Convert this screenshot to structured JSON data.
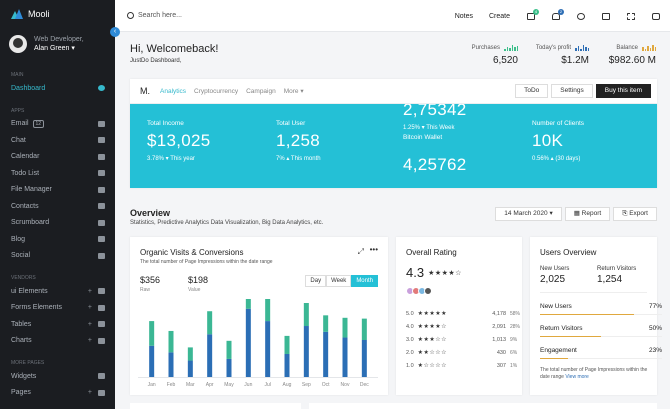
{
  "brand": {
    "name": "Mooli"
  },
  "profile": {
    "role": "Web Developer,",
    "name": "Alan Green ▾"
  },
  "sidebar": {
    "sections": [
      {
        "title": "MAIN",
        "items": [
          {
            "label": "Dashboard",
            "active": true
          }
        ]
      },
      {
        "title": "APPS",
        "items": [
          {
            "label": "Email",
            "badge": "12"
          },
          {
            "label": "Chat"
          },
          {
            "label": "Calendar"
          },
          {
            "label": "Todo List"
          },
          {
            "label": "File Manager"
          },
          {
            "label": "Contacts"
          },
          {
            "label": "Scrumboard"
          },
          {
            "label": "Blog"
          },
          {
            "label": "Social"
          }
        ]
      },
      {
        "title": "VENDORS",
        "items": [
          {
            "label": "ui Elements",
            "expandable": true
          },
          {
            "label": "Forms Elements",
            "expandable": true
          },
          {
            "label": "Tables",
            "expandable": true
          },
          {
            "label": "Charts",
            "expandable": true
          }
        ]
      },
      {
        "title": "MORE PAGES",
        "items": [
          {
            "label": "Widgets"
          },
          {
            "label": "Pages",
            "expandable": true
          }
        ]
      }
    ]
  },
  "topbar": {
    "search_placeholder": "Search here...",
    "links": [
      "Notes",
      "Create"
    ],
    "mail_badge": "4",
    "bell_badge": "2"
  },
  "header": {
    "title": "Hi, Welcomeback!",
    "subtitle": "JustDo Dashboard,",
    "stats": [
      {
        "label": "Purchases",
        "value": "6,520",
        "color": "#3bbf8a"
      },
      {
        "label": "Today's profit",
        "value": "$1.2M",
        "color": "#2f6fb5"
      },
      {
        "label": "Balance",
        "value": "$982.60 M",
        "color": "#e0a83e"
      }
    ]
  },
  "analytics": {
    "logo": "M.",
    "tabs": [
      "Analytics",
      "Cryptocurrency",
      "Campaign",
      "More ▾"
    ],
    "buttons": [
      "ToDo",
      "Settings",
      "Buy this item"
    ],
    "metrics": [
      {
        "label": "Total Income",
        "value": "$13,025",
        "sub": "3.78% ▾  This year"
      },
      {
        "label": "Total User",
        "value": "1,258",
        "sub": "7% ▴  This month"
      },
      {
        "label": "Bitcoin Wallet",
        "value_top": "2,75342",
        "sub_top": "1.25% ▾  This Week",
        "value_bottom": "4,25762"
      },
      {
        "label": "Number of Clients",
        "value": "10K",
        "sub": "0.56% ▴  (30 days)"
      }
    ]
  },
  "overview": {
    "title": "Overview",
    "subtitle": "Statistics, Predictive Analytics Data Visualization, Big Data Analytics, etc.",
    "date": "14 March 2020 ▾",
    "report": "Report",
    "export": "Export"
  },
  "visits": {
    "title": "Organic Visits & Conversions",
    "subtitle": "The total number of Page Impressions within the date range",
    "raw_value": "$356",
    "raw_label": "Raw",
    "value": "$198",
    "value_label": "Value",
    "periods": [
      "Day",
      "Week",
      "Month"
    ],
    "active_period": "Month"
  },
  "chart_data": {
    "type": "bar",
    "categories": [
      "Jan",
      "Feb",
      "Mar",
      "Apr",
      "May",
      "Jun",
      "Jul",
      "Aug",
      "Sep",
      "Oct",
      "Nov",
      "Dec"
    ],
    "series": [
      {
        "values": [
          38,
          30,
          20,
          52,
          22,
          83,
          68,
          28,
          62,
          55,
          48,
          45
        ]
      },
      {
        "values": [
          30,
          26,
          16,
          28,
          22,
          28,
          27,
          22,
          28,
          20,
          24,
          26
        ]
      }
    ],
    "colors": [
      "#2b6eb5",
      "#3bb794"
    ],
    "ylim": [
      0,
      90
    ]
  },
  "rating": {
    "title": "Overall Rating",
    "score": "4.3",
    "rows": [
      {
        "level": "5.0",
        "stars": "★★★★★",
        "count": "4,178",
        "pct": "58%"
      },
      {
        "level": "4.0",
        "stars": "★★★★☆",
        "count": "2,091",
        "pct": "28%"
      },
      {
        "level": "3.0",
        "stars": "★★★☆☆",
        "count": "1,013",
        "pct": "9%"
      },
      {
        "level": "2.0",
        "stars": "★★☆☆☆",
        "count": "430",
        "pct": "6%"
      },
      {
        "level": "1.0",
        "stars": "★☆☆☆☆",
        "count": "307",
        "pct": "1%"
      }
    ]
  },
  "users_overview": {
    "title": "Users Overview",
    "new_users_label": "New Users",
    "new_users": "2,025",
    "return_label": "Return Visitors",
    "return_value": "1,254",
    "items": [
      {
        "label": "New Users",
        "pct": "77%",
        "value": 77
      },
      {
        "label": "Return Visitors",
        "pct": "50%",
        "value": 50
      },
      {
        "label": "Engagement",
        "pct": "23%",
        "value": 23
      }
    ],
    "footer": "The total number of Page Impressions within the date range",
    "view_more": "View more"
  }
}
